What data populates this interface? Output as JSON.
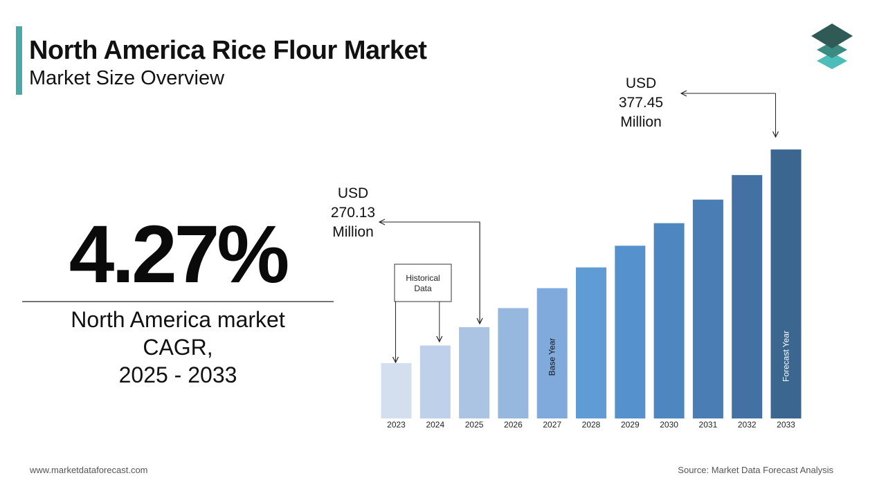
{
  "header": {
    "title": "North America Rice Flour Market",
    "subtitle": "Market Size Overview"
  },
  "cagr": {
    "value": "4.27%",
    "label_lines": [
      "North America market",
      "CAGR,",
      "2025 - 2033"
    ]
  },
  "chart_data": {
    "type": "bar",
    "categories": [
      "2023",
      "2024",
      "2025",
      "2026",
      "2027",
      "2028",
      "2029",
      "2030",
      "2031",
      "2032",
      "2033"
    ],
    "values": [
      248.46,
      259.07,
      270.13,
      281.66,
      293.69,
      306.23,
      319.31,
      332.94,
      347.16,
      361.98,
      377.45
    ],
    "value_labels": [
      null,
      null,
      "USD 270.13 Million",
      null,
      null,
      null,
      null,
      null,
      null,
      null,
      "USD 377.45 Million"
    ],
    "colors": [
      "#d3deef",
      "#bfd0ea",
      "#abc4e4",
      "#96b8df",
      "#80aadb",
      "#5f9cd5",
      "#5591cc",
      "#4e86bf",
      "#4a7db3",
      "#4371a3",
      "#3b6690"
    ],
    "ylim": [
      215,
      380
    ],
    "annotations": {
      "historical": "Historical Data",
      "base_year": "Base Year",
      "forecast_year": "Forecast Year"
    }
  },
  "footer": {
    "website": "www.marketdataforecast.com",
    "source": "Source: Market Data Forecast Analysis"
  }
}
